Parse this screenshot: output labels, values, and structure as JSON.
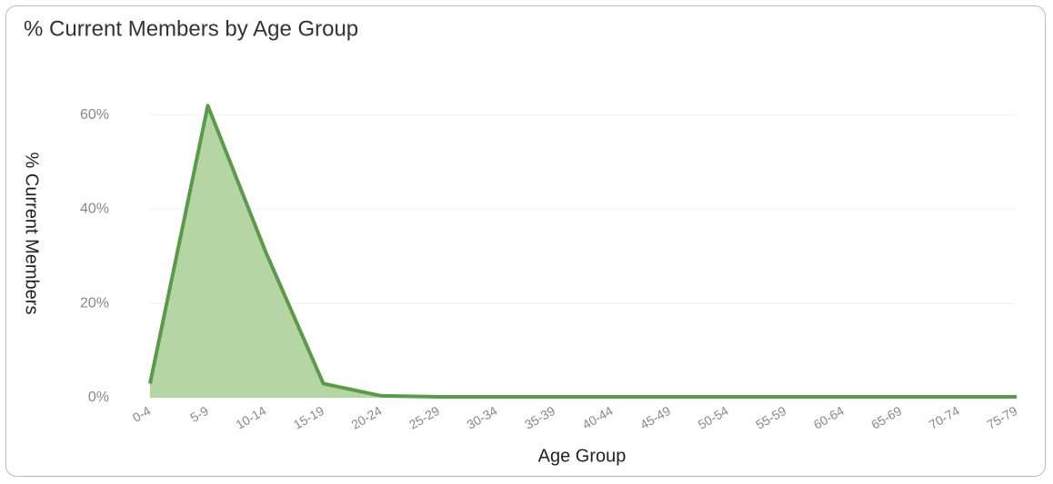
{
  "chart_data": {
    "type": "area",
    "title": "% Current Members by Age Group",
    "x_label": "Age Group",
    "y_label": "% Current Members",
    "categories": [
      "0-4",
      "5-9",
      "10-14",
      "15-19",
      "20-24",
      "25-29",
      "30-34",
      "35-39",
      "40-44",
      "45-49",
      "50-54",
      "55-59",
      "60-64",
      "65-69",
      "70-74",
      "75-79"
    ],
    "values": [
      3,
      62,
      31,
      3,
      0.4,
      0.2,
      0.2,
      0.2,
      0.2,
      0.2,
      0.2,
      0.2,
      0.2,
      0.2,
      0.2,
      0.2
    ],
    "color": "#5b9a48",
    "fill": "#b5d6a4",
    "ylim": [
      0,
      64
    ],
    "yticks": [
      {
        "value": 0,
        "label": "0%"
      },
      {
        "value": 20,
        "label": "20%"
      },
      {
        "value": 40,
        "label": "40%"
      },
      {
        "value": 60,
        "label": "60%"
      }
    ],
    "grid": true
  }
}
